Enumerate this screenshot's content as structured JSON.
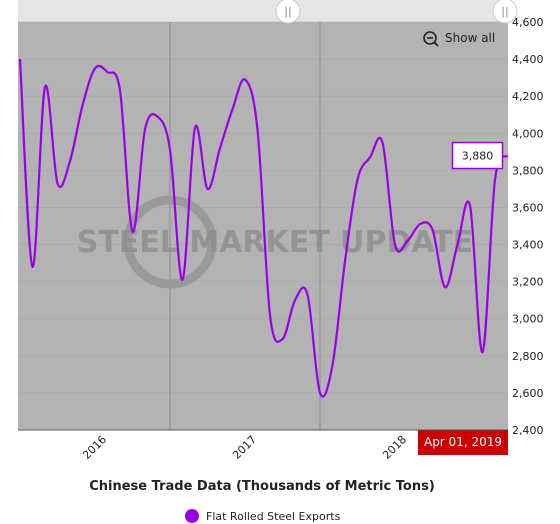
{
  "chart_data": {
    "type": "line",
    "title": "Chinese Trade Data (Thousands of Metric Tons)",
    "watermark": "STEEL MARKET UPDATE",
    "show_all_button": "Show all",
    "crosshair_label": "Apr 01, 2019",
    "categories": [
      null,
      null,
      null,
      null,
      null,
      null,
      "2016",
      null,
      null,
      null,
      null,
      null,
      null,
      null,
      null,
      null,
      null,
      null,
      "2017",
      null,
      null,
      null,
      null,
      null,
      null,
      null,
      null,
      null,
      null,
      null,
      "2018",
      null,
      null,
      null,
      null,
      null,
      null,
      null,
      null,
      null
    ],
    "series": [
      {
        "name": "Flat Rolled Steel Exports",
        "color": "#9a00e8",
        "values": [
          4400,
          3280,
          4250,
          3730,
          3850,
          4150,
          4350,
          4330,
          4230,
          3470,
          4020,
          4090,
          3910,
          3210,
          4030,
          3700,
          3920,
          4130,
          4290,
          4020,
          3020,
          2890,
          3100,
          3130,
          2600,
          2750,
          3310,
          3750,
          3870,
          3950,
          3400,
          3420,
          3510,
          3480,
          3170,
          3400,
          3610,
          2820,
          3750,
          3880
        ],
        "value_labels": [
          null,
          null,
          null,
          null,
          null,
          null,
          null,
          null,
          null,
          null,
          null,
          null,
          null,
          null,
          null,
          null,
          null,
          null,
          null,
          null,
          null,
          null,
          null,
          null,
          null,
          null,
          null,
          null,
          null,
          null,
          null,
          null,
          null,
          null,
          null,
          null,
          null,
          null,
          null,
          "3,880"
        ]
      }
    ],
    "ylim": [
      2400,
      4600
    ],
    "yticks": [
      {
        "value": 2400,
        "label": "2,400"
      },
      {
        "value": 2600,
        "label": "2,600"
      },
      {
        "value": 2800,
        "label": "2,800"
      },
      {
        "value": 3000,
        "label": "3,000"
      },
      {
        "value": 3200,
        "label": "3,200"
      },
      {
        "value": 3400,
        "label": "3,400"
      },
      {
        "value": 3600,
        "label": "3,600"
      },
      {
        "value": 3800,
        "label": "3,800"
      },
      {
        "value": 4000,
        "label": "4,000"
      },
      {
        "value": 4200,
        "label": "4,200"
      },
      {
        "value": 4400,
        "label": "4,400"
      },
      {
        "value": 4600,
        "label": "4,600"
      }
    ],
    "grid": true
  }
}
